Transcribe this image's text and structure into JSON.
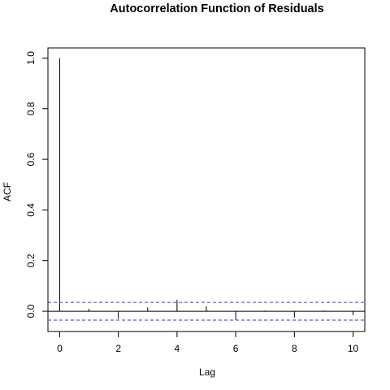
{
  "chart_data": {
    "type": "bar",
    "title": "Autocorrelation Function of Residuals",
    "xlabel": "Lag",
    "ylabel": "ACF",
    "x": [
      0,
      1,
      2,
      3,
      4,
      5,
      6,
      7,
      8,
      9,
      10
    ],
    "values": [
      1.0,
      0.01,
      -0.03,
      0.015,
      0.045,
      0.02,
      -0.035,
      0.003,
      -0.025,
      0.003,
      -0.015
    ],
    "xlim": [
      -0.4,
      10.4
    ],
    "ylim": [
      -0.08,
      1.04
    ],
    "x_ticks": [
      "0",
      "2",
      "4",
      "6",
      "8",
      "10"
    ],
    "y_ticks": [
      "0.0",
      "0.2",
      "0.4",
      "0.6",
      "0.8",
      "1.0"
    ],
    "confidence_bounds": [
      0.035,
      -0.035
    ],
    "grid": false,
    "colors": {
      "bars": "#000000",
      "zero_line": "#000000",
      "confidence_line": "#5b5bd6",
      "frame": "#000000"
    }
  }
}
